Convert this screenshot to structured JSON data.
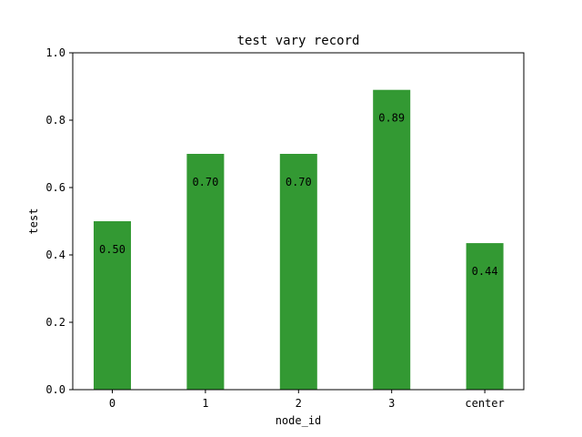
{
  "chart_data": {
    "type": "bar",
    "title": "test vary record",
    "xlabel": "node_id",
    "ylabel": "test",
    "categories": [
      "0",
      "1",
      "2",
      "3",
      "center"
    ],
    "values": [
      0.5,
      0.7,
      0.7,
      0.89,
      0.435
    ],
    "data_labels": [
      "0.50",
      "0.70",
      "0.70",
      "0.89",
      "0.44"
    ],
    "ylim": [
      0,
      1.0
    ],
    "yticks": [
      0.0,
      0.2,
      0.4,
      0.6,
      0.8,
      1.0
    ],
    "ytick_labels": [
      "0.0",
      "0.2",
      "0.4",
      "0.6",
      "0.8",
      "1.0"
    ],
    "bar_color": "#339933",
    "grid": false,
    "legend": "none"
  }
}
